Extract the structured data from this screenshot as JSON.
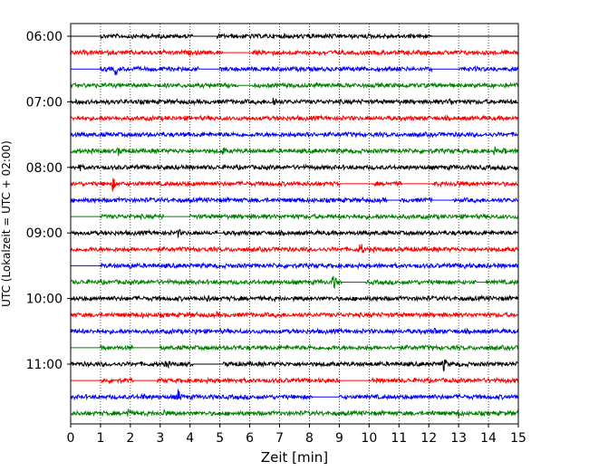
{
  "chart_data": {
    "type": "line",
    "title": "",
    "xlabel": "Zeit  [min]",
    "ylabel": "UTC (Lokalzeit = UTC + 02:00)",
    "xlim": [
      0,
      15
    ],
    "x_ticks": [
      "0",
      "1",
      "2",
      "3",
      "4",
      "5",
      "6",
      "7",
      "8",
      "9",
      "10",
      "11",
      "12",
      "13",
      "14",
      "15"
    ],
    "y_tick_labels": [
      {
        "label": "06:00",
        "trace": 0
      },
      {
        "label": "07:00",
        "trace": 4
      },
      {
        "label": "08:00",
        "trace": 8
      },
      {
        "label": "09:00",
        "trace": 12
      },
      {
        "label": "10:00",
        "trace": 16
      },
      {
        "label": "11:00",
        "trace": 20
      }
    ],
    "vertical_grid": true,
    "grid_style": "dotted",
    "trace_colors": [
      "#000000",
      "#ff0000",
      "#0000ff",
      "#008000"
    ],
    "traces": [
      {
        "gaps": [
          [
            0,
            1.0
          ],
          [
            4.1,
            4.9
          ],
          [
            12.1,
            15
          ]
        ],
        "events": [
          [
            1.1,
            2
          ],
          [
            3.1,
            2
          ],
          [
            4.1,
            2
          ],
          [
            9.3,
            2
          ]
        ]
      },
      {
        "gaps": [
          [
            0,
            0
          ],
          [
            5.1,
            6.1
          ]
        ],
        "events": [
          [
            11.3,
            4
          ]
        ]
      },
      {
        "gaps": [
          [
            0,
            1.0
          ],
          [
            4.3,
            5.0
          ],
          [
            12.1,
            13.0
          ]
        ],
        "events": [
          [
            1.5,
            8
          ]
        ]
      },
      {
        "gaps": [
          [
            0,
            0
          ],
          [
            5.6,
            6.1
          ]
        ],
        "events": [
          [
            12.6,
            3
          ]
        ]
      },
      {
        "gaps": [],
        "events": [
          [
            6.8,
            8
          ],
          [
            12.7,
            6
          ]
        ]
      },
      {
        "gaps": [],
        "events": [
          [
            2.0,
            2
          ]
        ]
      },
      {
        "gaps": [
          [
            0,
            0
          ]
        ],
        "events": [
          [
            7.9,
            8
          ],
          [
            7.5,
            3
          ]
        ]
      },
      {
        "gaps": [
          [
            0,
            0
          ]
        ],
        "events": [
          [
            1.6,
            6
          ],
          [
            5.1,
            6
          ],
          [
            14.2,
            6
          ],
          [
            14.5,
            5
          ]
        ]
      },
      {
        "gaps": [],
        "events": [
          [
            0.3,
            5
          ],
          [
            14.9,
            4
          ],
          [
            13.8,
            3
          ]
        ]
      },
      {
        "gaps": [
          [
            9.0,
            10.1
          ],
          [
            11.1,
            12.1
          ]
        ],
        "events": [
          [
            1.4,
            9
          ],
          [
            2.3,
            3
          ],
          [
            12.9,
            6
          ]
        ]
      },
      {
        "gaps": [
          [
            7.0,
            7.0
          ],
          [
            10.6,
            11.0
          ],
          [
            12.1,
            12.8
          ]
        ],
        "events": [
          [
            1.2,
            2
          ]
        ]
      },
      {
        "gaps": [
          [
            0,
            1.0
          ],
          [
            3.1,
            4.0
          ]
        ],
        "events": [
          [
            1.3,
            3
          ]
        ]
      },
      {
        "gaps": [
          [
            4.9,
            5.1
          ]
        ],
        "events": [
          [
            3.6,
            6
          ],
          [
            9.3,
            3
          ]
        ]
      },
      {
        "gaps": [],
        "events": [
          [
            9.7,
            10
          ],
          [
            6.4,
            3
          ]
        ]
      },
      {
        "gaps": [
          [
            0,
            1.0
          ]
        ],
        "events": [
          [
            2.0,
            5
          ],
          [
            13.2,
            6
          ]
        ]
      },
      {
        "gaps": [
          [
            0,
            0
          ],
          [
            9.1,
            9.9
          ],
          [
            13.6,
            13.9
          ]
        ],
        "events": [
          [
            8.8,
            10
          ],
          [
            8.4,
            4
          ]
        ]
      },
      {
        "gaps": [],
        "events": [
          [
            4.6,
            6
          ]
        ]
      },
      {
        "gaps": [],
        "events": [
          [
            2.4,
            4
          ],
          [
            4.9,
            4
          ],
          [
            10.9,
            3
          ]
        ]
      },
      {
        "gaps": [],
        "events": [
          [
            4.2,
            5
          ],
          [
            12.2,
            5
          ],
          [
            10.8,
            3
          ]
        ]
      },
      {
        "gaps": [
          [
            0,
            1.0
          ],
          [
            2.1,
            3.0
          ]
        ],
        "events": [
          [
            5.5,
            4
          ],
          [
            14.1,
            3
          ]
        ]
      },
      {
        "gaps": [
          [
            0,
            0
          ],
          [
            4.1,
            5.1
          ]
        ],
        "events": [
          [
            3.2,
            7
          ],
          [
            12.5,
            9
          ],
          [
            3.9,
            4
          ]
        ]
      },
      {
        "gaps": [
          [
            0,
            1.0
          ],
          [
            2.1,
            2.9
          ],
          [
            9.0,
            10.0
          ]
        ],
        "events": [
          [
            11.3,
            2
          ]
        ]
      },
      {
        "gaps": [
          [
            0,
            0
          ],
          [
            8.1,
            9.0
          ]
        ],
        "events": [
          [
            2.4,
            6
          ],
          [
            3.6,
            9
          ]
        ]
      },
      {
        "gaps": [
          [
            0,
            0
          ]
        ],
        "events": [
          [
            1.9,
            8
          ],
          [
            3.1,
            7
          ],
          [
            12.1,
            5
          ],
          [
            13.0,
            6
          ]
        ]
      }
    ]
  }
}
